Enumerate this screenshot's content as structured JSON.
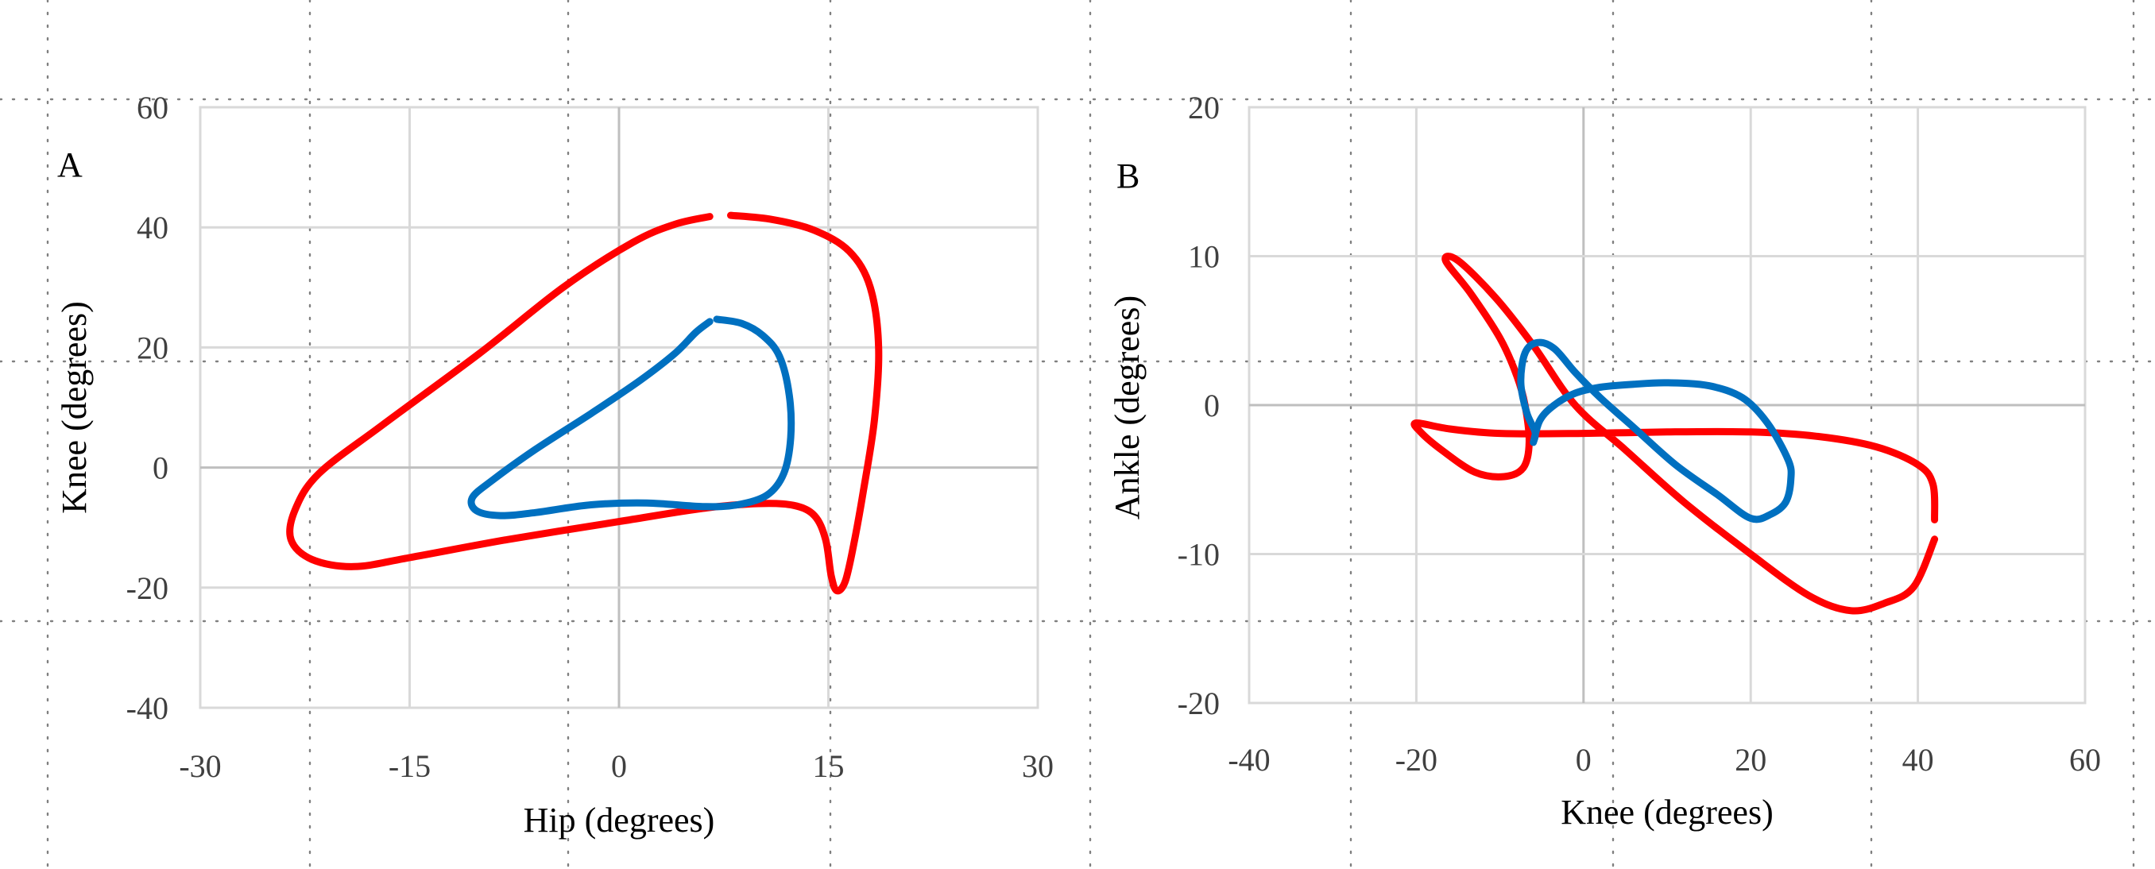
{
  "colors": {
    "red_series": "#ff0000",
    "blue_series": "#0070c0",
    "grid": "#d9d9d9",
    "zero_line": "#bfbfbf",
    "guide_dots": "#808080"
  },
  "chart_data": [
    {
      "id": "A",
      "type": "line",
      "panel_label": "A",
      "xlabel": "Hip (degrees)",
      "ylabel": "Knee (degrees)",
      "xlim": [
        -30,
        30
      ],
      "ylim": [
        -40,
        60
      ],
      "xticks": [
        -30,
        -15,
        0,
        15,
        30
      ],
      "yticks": [
        -40,
        -20,
        0,
        20,
        40,
        60
      ],
      "grid": true,
      "series": [
        {
          "color": "#ff0000",
          "points": [
            [
              8,
              42
            ],
            [
              11,
              41.3
            ],
            [
              14,
              39.5
            ],
            [
              16.5,
              36
            ],
            [
              18,
              30
            ],
            [
              18.6,
              20
            ],
            [
              18.3,
              8
            ],
            [
              17.5,
              -4
            ],
            [
              16.8,
              -13
            ],
            [
              16.2,
              -19
            ],
            [
              15.6,
              -20.5
            ],
            [
              15.2,
              -18
            ],
            [
              14.8,
              -12
            ],
            [
              14,
              -8
            ],
            [
              12.5,
              -6.3
            ],
            [
              10,
              -6
            ],
            [
              6,
              -6.8
            ],
            [
              0,
              -9
            ],
            [
              -8,
              -12
            ],
            [
              -15,
              -15
            ],
            [
              -19,
              -16.5
            ],
            [
              -22,
              -15.3
            ],
            [
              -23.5,
              -12
            ],
            [
              -23.2,
              -7
            ],
            [
              -21.5,
              -1
            ],
            [
              -17,
              7
            ],
            [
              -10,
              19
            ],
            [
              -4,
              30
            ],
            [
              1,
              37.5
            ],
            [
              4,
              40.5
            ],
            [
              6.5,
              41.8
            ]
          ]
        },
        {
          "color": "#0070c0",
          "points": [
            [
              7,
              24.7
            ],
            [
              8.8,
              24
            ],
            [
              10.3,
              22
            ],
            [
              11.5,
              18.5
            ],
            [
              12.2,
              12
            ],
            [
              12.3,
              5
            ],
            [
              11.8,
              -1
            ],
            [
              10.6,
              -4.6
            ],
            [
              8.5,
              -6.2
            ],
            [
              6,
              -6.5
            ],
            [
              2,
              -5.9
            ],
            [
              -2,
              -6.2
            ],
            [
              -6,
              -7.5
            ],
            [
              -8.5,
              -8
            ],
            [
              -10.2,
              -7.2
            ],
            [
              -10.5,
              -5
            ],
            [
              -9,
              -2
            ],
            [
              -6,
              3
            ],
            [
              -2,
              9
            ],
            [
              1.5,
              14.5
            ],
            [
              4,
              19
            ],
            [
              5.5,
              22.5
            ],
            [
              6.5,
              24.3
            ]
          ]
        }
      ]
    },
    {
      "id": "B",
      "type": "line",
      "panel_label": "B",
      "xlabel": "Knee (degrees)",
      "ylabel": "Ankle (degrees)",
      "xlim": [
        -40,
        60
      ],
      "ylim": [
        -20,
        20
      ],
      "xticks": [
        -40,
        -20,
        0,
        20,
        40,
        60
      ],
      "yticks": [
        -20,
        -10,
        0,
        10,
        20
      ],
      "grid": true,
      "series": [
        {
          "color": "#ff0000",
          "points": [
            [
              42,
              -7.7
            ],
            [
              41.8,
              -5.3
            ],
            [
              40,
              -4
            ],
            [
              35,
              -2.8
            ],
            [
              28,
              -2.1
            ],
            [
              20,
              -1.8
            ],
            [
              10,
              -1.8
            ],
            [
              0,
              -1.9
            ],
            [
              -10,
              -1.9
            ],
            [
              -16,
              -1.6
            ],
            [
              -20,
              -1.2
            ],
            [
              -19.5,
              -1.8
            ],
            [
              -17,
              -3
            ],
            [
              -13,
              -4.5
            ],
            [
              -9.5,
              -4.8
            ],
            [
              -7.2,
              -4.2
            ],
            [
              -6.5,
              -2.5
            ],
            [
              -7,
              0
            ],
            [
              -8,
              2
            ],
            [
              -10,
              4.5
            ],
            [
              -13.5,
              7.5
            ],
            [
              -16.5,
              9.7
            ],
            [
              -15,
              9.7
            ],
            [
              -10.5,
              7.2
            ],
            [
              -6,
              4
            ],
            [
              -1,
              0
            ],
            [
              5,
              -3
            ],
            [
              12,
              -6.5
            ],
            [
              20,
              -10
            ],
            [
              27,
              -12.8
            ],
            [
              32,
              -13.8
            ],
            [
              36,
              -13.3
            ],
            [
              39.5,
              -12.2
            ],
            [
              42,
              -9
            ]
          ]
        },
        {
          "color": "#0070c0",
          "points": [
            [
              -6,
              -2.5
            ],
            [
              -5.2,
              -1
            ],
            [
              -3.5,
              0
            ],
            [
              -1,
              0.8
            ],
            [
              2,
              1.2
            ],
            [
              6,
              1.4
            ],
            [
              10,
              1.5
            ],
            [
              15,
              1.3
            ],
            [
              19,
              0.5
            ],
            [
              22,
              -1.2
            ],
            [
              24.5,
              -3.7
            ],
            [
              24.8,
              -5
            ],
            [
              24.2,
              -6.5
            ],
            [
              22.5,
              -7.3
            ],
            [
              20,
              -7.6
            ],
            [
              16,
              -6
            ],
            [
              11,
              -4
            ],
            [
              6,
              -1.5
            ],
            [
              2,
              0.5
            ],
            [
              -1,
              2.2
            ],
            [
              -3.5,
              3.8
            ],
            [
              -5.5,
              4.2
            ],
            [
              -7,
              3.5
            ],
            [
              -7.5,
              1.5
            ],
            [
              -6.8,
              -0.5
            ],
            [
              -5.8,
              -1.8
            ],
            [
              -6,
              -2.5
            ]
          ]
        }
      ]
    }
  ]
}
